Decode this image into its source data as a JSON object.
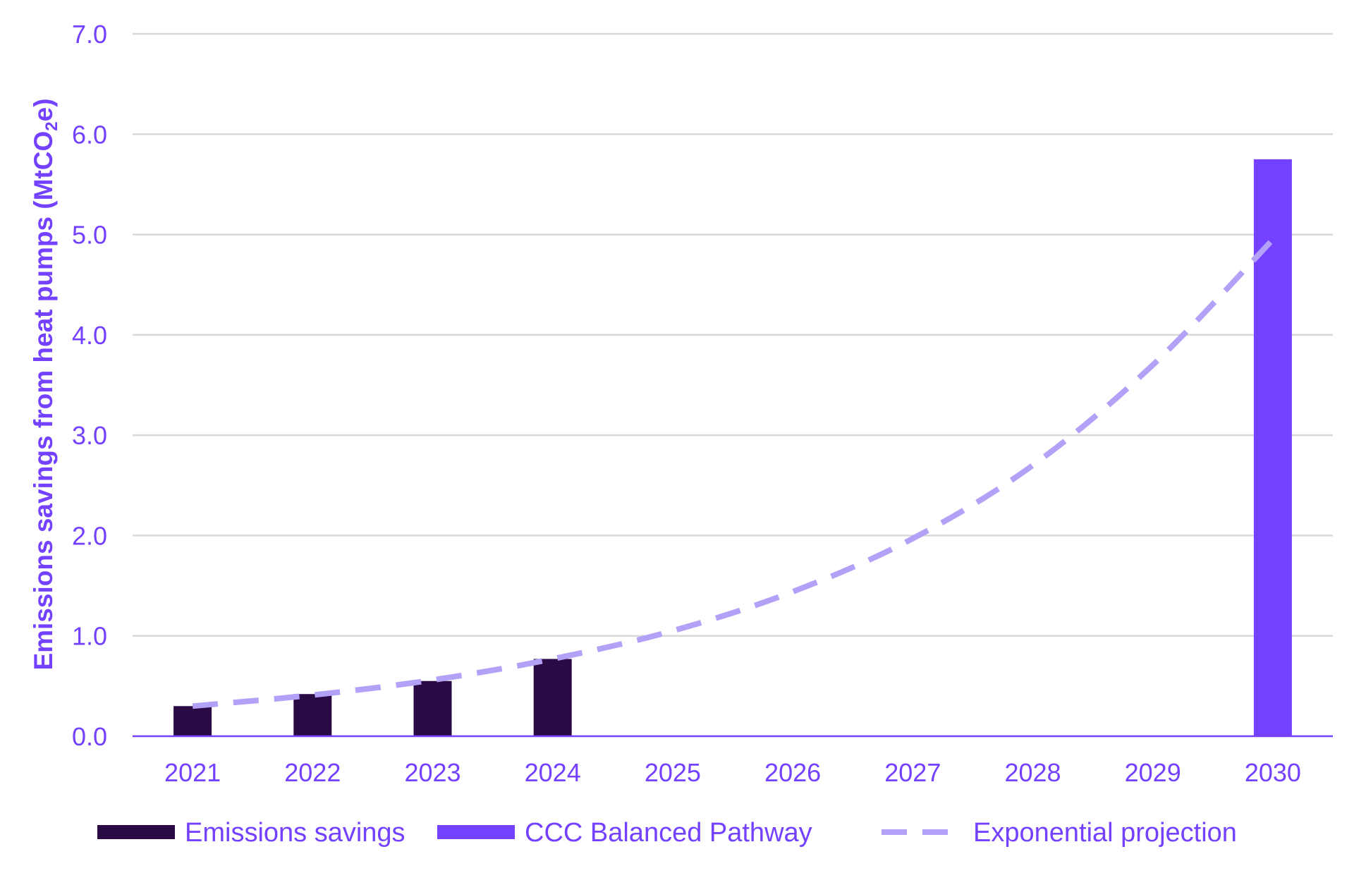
{
  "chart_data": {
    "type": "bar",
    "title": "",
    "xlabel": "",
    "ylabel": {
      "text_before": "Emissions savings from heat pumps (MtCO",
      "subscript": "2",
      "text_after": "e)"
    },
    "categories": [
      "2021",
      "2022",
      "2023",
      "2024",
      "2025",
      "2026",
      "2027",
      "2028",
      "2029",
      "2030"
    ],
    "ylim": [
      0,
      7
    ],
    "yticks": [
      {
        "value": 0,
        "label": "0.0"
      },
      {
        "value": 1,
        "label": "1.0"
      },
      {
        "value": 2,
        "label": "2.0"
      },
      {
        "value": 3,
        "label": "3.0"
      },
      {
        "value": 4,
        "label": "4.0"
      },
      {
        "value": 5,
        "label": "5.0"
      },
      {
        "value": 6,
        "label": "6.0"
      },
      {
        "value": 7,
        "label": "7.0"
      }
    ],
    "grid": true,
    "legend_position": "bottom",
    "series": [
      {
        "name": "Emissions savings",
        "kind": "bar",
        "color": "#2a0a45",
        "values": [
          0.3,
          0.42,
          0.55,
          0.77,
          null,
          null,
          null,
          null,
          null,
          null
        ]
      },
      {
        "name": "CCC Balanced Pathway",
        "kind": "bar",
        "color": "#7341ff",
        "values": [
          null,
          null,
          null,
          null,
          null,
          null,
          null,
          null,
          null,
          5.75
        ]
      },
      {
        "name": "Exponential projection",
        "kind": "dashed-line",
        "color": "#b3a0f7",
        "values": [
          0.3,
          0.41,
          0.56,
          0.77,
          1.05,
          1.44,
          1.97,
          2.7,
          3.7,
          4.95
        ]
      }
    ],
    "colors": {
      "axis_text": "#7341ff",
      "gridline": "#d9d9d9",
      "baseline": "#7341ff"
    }
  }
}
